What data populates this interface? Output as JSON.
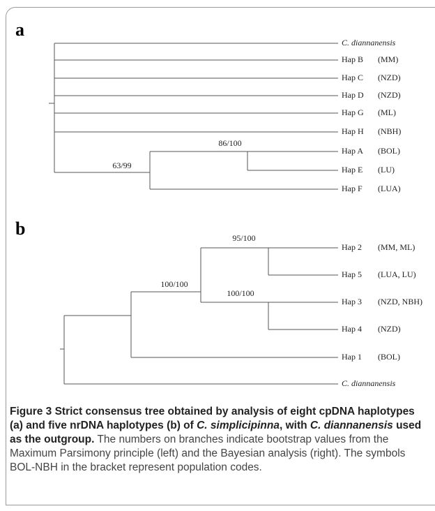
{
  "panels": [
    {
      "label": "a",
      "leaves": [
        {
          "name": "C. diannanensis"
        },
        {
          "name": "Hap B",
          "code": "(MM)"
        },
        {
          "name": "Hap C",
          "code": "(NZD)"
        },
        {
          "name": "Hap D",
          "code": "(NZD)"
        },
        {
          "name": "Hap G",
          "code": "(ML)"
        },
        {
          "name": "Hap H",
          "code": "(NBH)"
        },
        {
          "name": "Hap A",
          "code": "(BOL)"
        },
        {
          "name": "Hap E",
          "code": "(LU)"
        },
        {
          "name": "Hap F",
          "code": "(LUA)"
        }
      ],
      "supports": [
        "63/99",
        "86/100"
      ]
    },
    {
      "label": "b",
      "leaves": [
        {
          "name": "Hap 2",
          "code": "(MM, ML)"
        },
        {
          "name": "Hap 5",
          "code": "(LUA, LU)"
        },
        {
          "name": "Hap 3",
          "code": "(NZD, NBH)"
        },
        {
          "name": "Hap 4",
          "code": "(NZD)"
        },
        {
          "name": "Hap 1",
          "code": "(BOL)"
        },
        {
          "name": "C. diannanensis"
        }
      ],
      "supports": [
        "100/100",
        "95/100",
        "100/100"
      ]
    }
  ],
  "caption": {
    "title_parts": [
      "Figure 3 Strict consensus tree obtained by analysis of eight cpDNA haplotypes (a) and five nrDNA haplotypes (b) of ",
      "C. simplicipinna",
      ", with ",
      "C. diannanensis",
      " used as the outgroup."
    ],
    "body": "The numbers on branches indicate bootstrap values from the Maximum Parsimony principle (left) and the Bayesian analysis (right). The symbols BOL-NBH in the bracket represent population codes."
  }
}
